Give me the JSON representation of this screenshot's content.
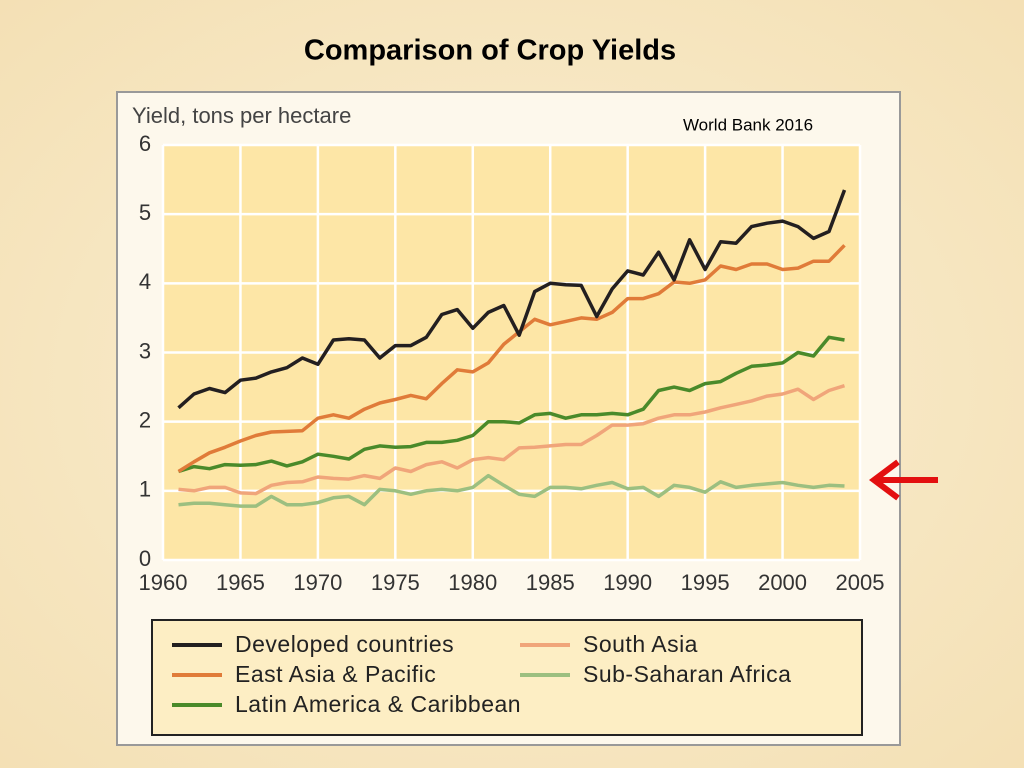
{
  "chart_data": {
    "type": "line",
    "title": "Comparison of Crop Yields",
    "y_label": "Yield, tons per hectare",
    "source": "World Bank 2016",
    "x": [
      1961,
      1962,
      1963,
      1964,
      1965,
      1966,
      1967,
      1968,
      1969,
      1970,
      1971,
      1972,
      1973,
      1974,
      1975,
      1976,
      1977,
      1978,
      1979,
      1980,
      1981,
      1982,
      1983,
      1984,
      1985,
      1986,
      1987,
      1988,
      1989,
      1990,
      1991,
      1992,
      1993,
      1994,
      1995,
      1996,
      1997,
      1998,
      1999,
      2000,
      2001,
      2002,
      2003,
      2004
    ],
    "xlim": [
      1960,
      2005
    ],
    "xticks": [
      1960,
      1965,
      1970,
      1975,
      1980,
      1985,
      1990,
      1995,
      2000,
      2005
    ],
    "ylim": [
      0,
      6
    ],
    "yticks": [
      0,
      1,
      2,
      3,
      4,
      5,
      6
    ],
    "grid": true,
    "legend_position": "bottom",
    "series": [
      {
        "name": "Developed countries",
        "color": "#231f20",
        "values": [
          2.2,
          2.4,
          2.48,
          2.42,
          2.6,
          2.63,
          2.72,
          2.78,
          2.92,
          2.83,
          3.18,
          3.2,
          3.18,
          2.92,
          3.1,
          3.1,
          3.22,
          3.55,
          3.62,
          3.35,
          3.58,
          3.68,
          3.25,
          3.88,
          4.0,
          3.98,
          3.97,
          3.52,
          3.92,
          4.18,
          4.12,
          4.45,
          4.05,
          4.63,
          4.2,
          4.6,
          4.58,
          4.82,
          4.87,
          4.9,
          4.82,
          4.65,
          4.75,
          5.35
        ]
      },
      {
        "name": "East Asia & Pacific",
        "color": "#e07b39",
        "values": [
          1.28,
          1.42,
          1.55,
          1.63,
          1.72,
          1.8,
          1.85,
          1.86,
          1.87,
          2.05,
          2.1,
          2.05,
          2.18,
          2.27,
          2.32,
          2.38,
          2.33,
          2.55,
          2.75,
          2.72,
          2.85,
          3.12,
          3.3,
          3.48,
          3.4,
          3.45,
          3.5,
          3.48,
          3.58,
          3.78,
          3.78,
          3.85,
          4.02,
          4.0,
          4.05,
          4.25,
          4.2,
          4.28,
          4.28,
          4.2,
          4.22,
          4.32,
          4.32,
          4.55
        ]
      },
      {
        "name": "Latin America & Caribbean",
        "color": "#4a8a2a",
        "values": [
          1.28,
          1.35,
          1.32,
          1.38,
          1.37,
          1.38,
          1.43,
          1.36,
          1.42,
          1.53,
          1.5,
          1.46,
          1.6,
          1.65,
          1.63,
          1.64,
          1.7,
          1.7,
          1.73,
          1.8,
          2.0,
          2.0,
          1.98,
          2.1,
          2.12,
          2.05,
          2.1,
          2.1,
          2.12,
          2.1,
          2.18,
          2.45,
          2.5,
          2.45,
          2.55,
          2.58,
          2.7,
          2.8,
          2.82,
          2.85,
          3.0,
          2.95,
          3.22,
          3.18
        ]
      },
      {
        "name": "South Asia",
        "color": "#f0a57a",
        "values": [
          1.02,
          1.0,
          1.05,
          1.05,
          0.97,
          0.96,
          1.08,
          1.12,
          1.13,
          1.2,
          1.18,
          1.17,
          1.22,
          1.18,
          1.33,
          1.28,
          1.38,
          1.42,
          1.33,
          1.45,
          1.48,
          1.45,
          1.62,
          1.63,
          1.65,
          1.67,
          1.67,
          1.8,
          1.95,
          1.95,
          1.97,
          2.05,
          2.1,
          2.1,
          2.14,
          2.2,
          2.25,
          2.3,
          2.37,
          2.4,
          2.47,
          2.32,
          2.45,
          2.52
        ]
      },
      {
        "name": "Sub-Saharan Africa",
        "color": "#9cbf80",
        "values": [
          0.8,
          0.82,
          0.82,
          0.8,
          0.78,
          0.78,
          0.92,
          0.8,
          0.8,
          0.83,
          0.9,
          0.92,
          0.8,
          1.02,
          1.0,
          0.95,
          1.0,
          1.02,
          1.0,
          1.05,
          1.22,
          1.08,
          0.95,
          0.92,
          1.05,
          1.05,
          1.03,
          1.08,
          1.12,
          1.03,
          1.05,
          0.92,
          1.08,
          1.05,
          0.98,
          1.13,
          1.05,
          1.08,
          1.1,
          1.12,
          1.08,
          1.05,
          1.08,
          1.07
        ]
      }
    ]
  }
}
